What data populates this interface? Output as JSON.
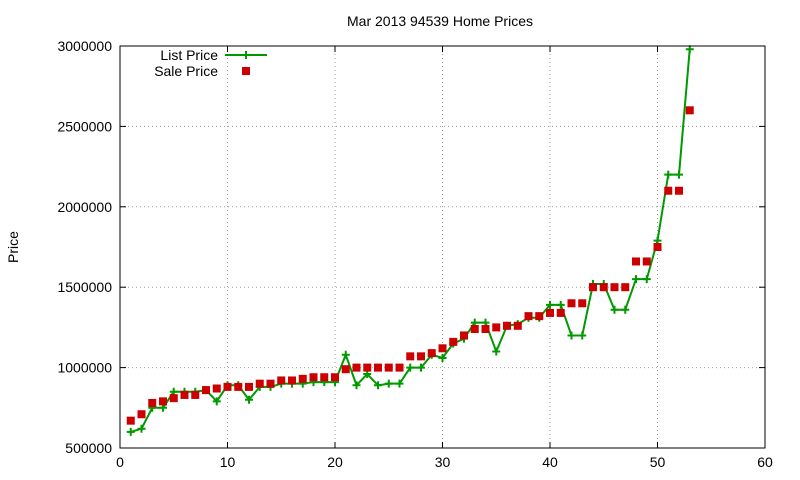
{
  "chart_data": {
    "type": "scatter",
    "title": "Mar 2013 94539 Home Prices",
    "xlabel": "",
    "ylabel": "Price",
    "xlim": [
      0,
      60
    ],
    "ylim": [
      500000,
      3000000
    ],
    "xticks": [
      0,
      10,
      20,
      30,
      40,
      50,
      60
    ],
    "yticks": [
      500000,
      1000000,
      1500000,
      2000000,
      2500000,
      3000000
    ],
    "grid": true,
    "legend_position": "top-left",
    "series": [
      {
        "name": "List Price",
        "style": "line-with-plus-markers",
        "color": "#009900",
        "x": [
          1,
          2,
          3,
          4,
          5,
          6,
          7,
          8,
          9,
          10,
          11,
          12,
          13,
          14,
          15,
          16,
          17,
          18,
          19,
          20,
          21,
          22,
          23,
          24,
          25,
          26,
          27,
          28,
          29,
          30,
          31,
          32,
          33,
          34,
          35,
          36,
          37,
          38,
          39,
          40,
          41,
          42,
          43,
          44,
          45,
          46,
          47,
          48,
          49,
          50,
          51,
          52,
          53
        ],
        "y": [
          600000,
          620000,
          750000,
          750000,
          850000,
          850000,
          850000,
          860000,
          790000,
          890000,
          890000,
          800000,
          880000,
          880000,
          900000,
          900000,
          900000,
          910000,
          910000,
          910000,
          1080000,
          890000,
          960000,
          890000,
          900000,
          900000,
          1000000,
          1000000,
          1080000,
          1060000,
          1150000,
          1180000,
          1280000,
          1280000,
          1100000,
          1260000,
          1270000,
          1310000,
          1310000,
          1390000,
          1390000,
          1200000,
          1200000,
          1520000,
          1520000,
          1360000,
          1360000,
          1550000,
          1550000,
          1790000,
          2200000,
          2200000,
          2980000
        ]
      },
      {
        "name": "Sale Price",
        "style": "square-markers",
        "color": "#cc0000",
        "x": [
          1,
          2,
          3,
          4,
          5,
          6,
          7,
          8,
          9,
          10,
          11,
          12,
          13,
          14,
          15,
          16,
          17,
          18,
          19,
          20,
          21,
          22,
          23,
          24,
          25,
          26,
          27,
          28,
          29,
          30,
          31,
          32,
          33,
          34,
          35,
          36,
          37,
          38,
          39,
          40,
          41,
          42,
          43,
          44,
          45,
          46,
          47,
          48,
          49,
          50,
          51,
          52,
          53
        ],
        "y": [
          670000,
          710000,
          780000,
          790000,
          810000,
          830000,
          830000,
          860000,
          870000,
          880000,
          880000,
          880000,
          900000,
          900000,
          920000,
          920000,
          930000,
          940000,
          940000,
          940000,
          990000,
          1000000,
          1000000,
          1000000,
          1000000,
          1000000,
          1070000,
          1070000,
          1090000,
          1120000,
          1160000,
          1200000,
          1240000,
          1240000,
          1250000,
          1260000,
          1260000,
          1320000,
          1320000,
          1340000,
          1340000,
          1400000,
          1400000,
          1500000,
          1500000,
          1500000,
          1500000,
          1660000,
          1660000,
          1750000,
          2100000,
          2100000,
          2600000
        ]
      }
    ]
  }
}
